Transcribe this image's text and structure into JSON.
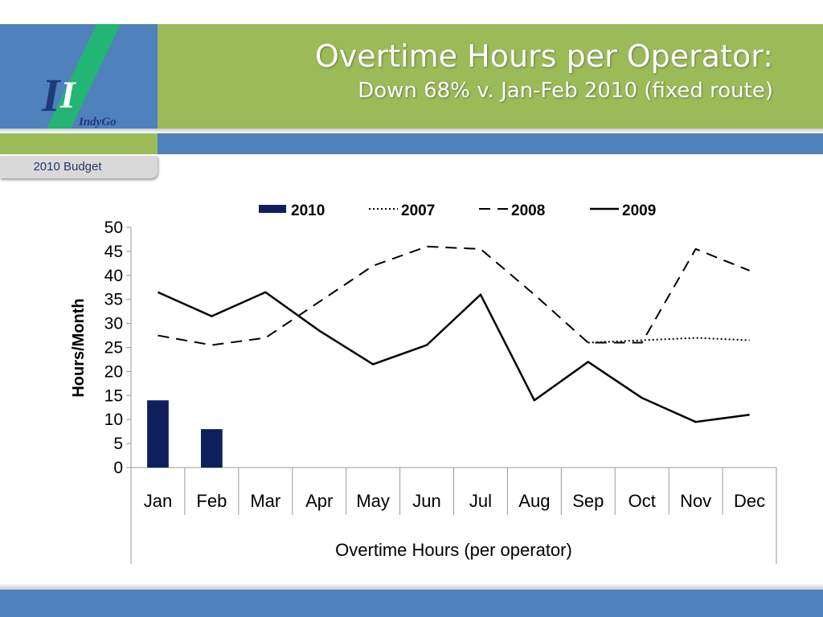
{
  "header": {
    "title": "Overtime Hours per Operator:",
    "subtitle": "Down 68% v. Jan-Feb 2010 (fixed route)",
    "logo_text": "IndyGo"
  },
  "tab": {
    "label": "2010 Budget"
  },
  "colors": {
    "header_green": "#9bbb59",
    "header_blue": "#4f81bd",
    "bar_navy": "#0f1f5c",
    "logo_stripe": "#22b573"
  },
  "chart_data": {
    "type": "bar",
    "title": "",
    "xlabel": "Overtime Hours (per operator)",
    "ylabel": "Hours/Month",
    "ylim": [
      0,
      50
    ],
    "yticks": [
      0,
      5,
      10,
      15,
      20,
      25,
      30,
      35,
      40,
      45,
      50
    ],
    "categories": [
      "Jan",
      "Feb",
      "Mar",
      "Apr",
      "May",
      "Jun",
      "Jul",
      "Aug",
      "Sep",
      "Oct",
      "Nov",
      "Dec"
    ],
    "legend_position": "top",
    "grid": false,
    "series": [
      {
        "name": "2010",
        "kind": "bar",
        "style": "solid",
        "values": [
          14,
          8,
          null,
          null,
          null,
          null,
          null,
          null,
          null,
          null,
          null,
          null
        ]
      },
      {
        "name": "2007",
        "kind": "line",
        "style": "dotted",
        "values": [
          null,
          null,
          null,
          null,
          null,
          null,
          null,
          null,
          26,
          26.5,
          27,
          26.5
        ]
      },
      {
        "name": "2008",
        "kind": "line",
        "style": "dashed",
        "values": [
          27.5,
          25.5,
          27,
          34.5,
          42,
          46,
          45.5,
          36,
          26,
          26,
          45.5,
          41
        ]
      },
      {
        "name": "2009",
        "kind": "line",
        "style": "solid",
        "values": [
          36.5,
          31.5,
          36.5,
          28.5,
          21.5,
          25.5,
          36,
          14,
          22,
          14.5,
          9.5,
          11
        ]
      }
    ]
  }
}
